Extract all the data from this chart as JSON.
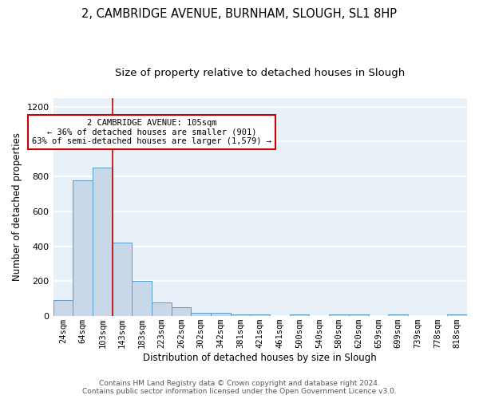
{
  "title1": "2, CAMBRIDGE AVENUE, BURNHAM, SLOUGH, SL1 8HP",
  "title2": "Size of property relative to detached houses in Slough",
  "xlabel": "Distribution of detached houses by size in Slough",
  "ylabel": "Number of detached properties",
  "categories": [
    "24sqm",
    "64sqm",
    "103sqm",
    "143sqm",
    "183sqm",
    "223sqm",
    "262sqm",
    "302sqm",
    "342sqm",
    "381sqm",
    "421sqm",
    "461sqm",
    "500sqm",
    "540sqm",
    "580sqm",
    "620sqm",
    "659sqm",
    "699sqm",
    "739sqm",
    "778sqm",
    "818sqm"
  ],
  "values": [
    90,
    780,
    850,
    420,
    200,
    80,
    50,
    20,
    20,
    12,
    12,
    0,
    12,
    0,
    12,
    12,
    0,
    12,
    0,
    0,
    12
  ],
  "bar_color": "#c8d8e8",
  "bar_edge_color": "#5a9bc8",
  "vline_index": 2,
  "vline_color": "#cc0000",
  "annotation_text": "2 CAMBRIDGE AVENUE: 105sqm\n← 36% of detached houses are smaller (901)\n63% of semi-detached houses are larger (1,579) →",
  "annotation_box_color": "#ffffff",
  "annotation_box_edge": "#cc0000",
  "ylim": [
    0,
    1250
  ],
  "yticks": [
    0,
    200,
    400,
    600,
    800,
    1000,
    1200
  ],
  "background_color": "#e8f0f8",
  "grid_color": "#ffffff",
  "footer": "Contains HM Land Registry data © Crown copyright and database right 2024.\nContains public sector information licensed under the Open Government Licence v3.0.",
  "title1_fontsize": 10.5,
  "title2_fontsize": 9.5,
  "xlabel_fontsize": 8.5,
  "ylabel_fontsize": 8.5,
  "footer_fontsize": 6.5,
  "tick_fontsize": 7.5,
  "annot_fontsize": 7.5
}
